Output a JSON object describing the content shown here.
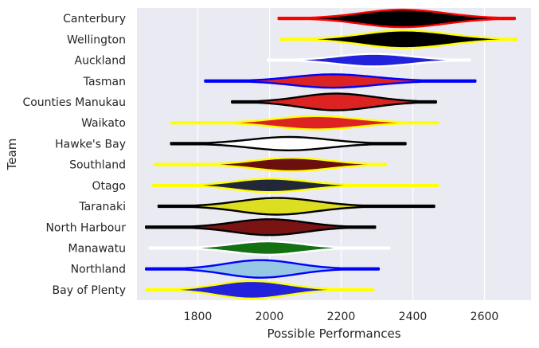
{
  "chart_data": {
    "type": "violin",
    "orient": "horizontal",
    "xlabel": "Possible Performances",
    "ylabel": "Team",
    "xlim": [
      1630,
      2730
    ],
    "xticks": [
      1800,
      2000,
      2200,
      2400,
      2600
    ],
    "grid": true,
    "background": "#EAEAF2",
    "grid_color": "#FFFFFF",
    "series": [
      {
        "name": "Canterbury",
        "min": 2025,
        "max": 2685,
        "peak": 2370,
        "spread_low": 115,
        "spread_high": 120,
        "max_half_width": 0.42,
        "fill": "#000000",
        "edge": "#FF0000"
      },
      {
        "name": "Wellington",
        "min": 2030,
        "max": 2690,
        "peak": 2375,
        "spread_low": 115,
        "spread_high": 125,
        "max_half_width": 0.42,
        "fill": "#000000",
        "edge": "#FFFF00"
      },
      {
        "name": "Auckland",
        "min": 1995,
        "max": 2560,
        "peak": 2290,
        "spread_low": 100,
        "spread_high": 105,
        "max_half_width": 0.3,
        "fill": "#2222DD",
        "edge": "#FFFFFF"
      },
      {
        "name": "Tasman",
        "min": 1820,
        "max": 2575,
        "peak": 2175,
        "spread_low": 110,
        "spread_high": 120,
        "max_half_width": 0.32,
        "fill": "#DD2222",
        "edge": "#0000FF"
      },
      {
        "name": "Counties Manukau",
        "min": 1895,
        "max": 2465,
        "peak": 2185,
        "spread_low": 100,
        "spread_high": 105,
        "max_half_width": 0.4,
        "fill": "#DD2222",
        "edge": "#000000"
      },
      {
        "name": "Waikato",
        "min": 1725,
        "max": 2470,
        "peak": 2130,
        "spread_low": 110,
        "spread_high": 115,
        "max_half_width": 0.32,
        "fill": "#DD2222",
        "edge": "#FFFF00"
      },
      {
        "name": "Hawke's Bay",
        "min": 1725,
        "max": 2380,
        "peak": 2055,
        "spread_low": 110,
        "spread_high": 110,
        "max_half_width": 0.32,
        "fill": "#FFFFFF",
        "edge": "#000000"
      },
      {
        "name": "Southland",
        "min": 1680,
        "max": 2325,
        "peak": 2060,
        "spread_low": 100,
        "spread_high": 105,
        "max_half_width": 0.32,
        "fill": "#6B0E0E",
        "edge": "#FFFF00"
      },
      {
        "name": "Otago",
        "min": 1675,
        "max": 2470,
        "peak": 2000,
        "spread_low": 95,
        "spread_high": 105,
        "max_half_width": 0.32,
        "fill": "#22273A",
        "edge": "#FFFF00"
      },
      {
        "name": "Taranaki",
        "min": 1690,
        "max": 2460,
        "peak": 2020,
        "spread_low": 105,
        "spread_high": 110,
        "max_half_width": 0.4,
        "fill": "#DDDD22",
        "edge": "#000000"
      },
      {
        "name": "North Harbour",
        "min": 1655,
        "max": 2295,
        "peak": 2000,
        "spread_low": 100,
        "spread_high": 100,
        "max_half_width": 0.38,
        "fill": "#7A1414",
        "edge": "#000000"
      },
      {
        "name": "Manawatu",
        "min": 1665,
        "max": 2335,
        "peak": 1995,
        "spread_low": 95,
        "spread_high": 95,
        "max_half_width": 0.32,
        "fill": "#137013",
        "edge": "#FFFFFF"
      },
      {
        "name": "Northland",
        "min": 1655,
        "max": 2305,
        "peak": 1975,
        "spread_low": 95,
        "spread_high": 100,
        "max_half_width": 0.42,
        "fill": "#96C8E6",
        "edge": "#0000FF"
      },
      {
        "name": "Bay of Plenty",
        "min": 1655,
        "max": 2290,
        "peak": 1950,
        "spread_low": 95,
        "spread_high": 100,
        "max_half_width": 0.42,
        "fill": "#2222DD",
        "edge": "#FFFF00"
      }
    ]
  }
}
